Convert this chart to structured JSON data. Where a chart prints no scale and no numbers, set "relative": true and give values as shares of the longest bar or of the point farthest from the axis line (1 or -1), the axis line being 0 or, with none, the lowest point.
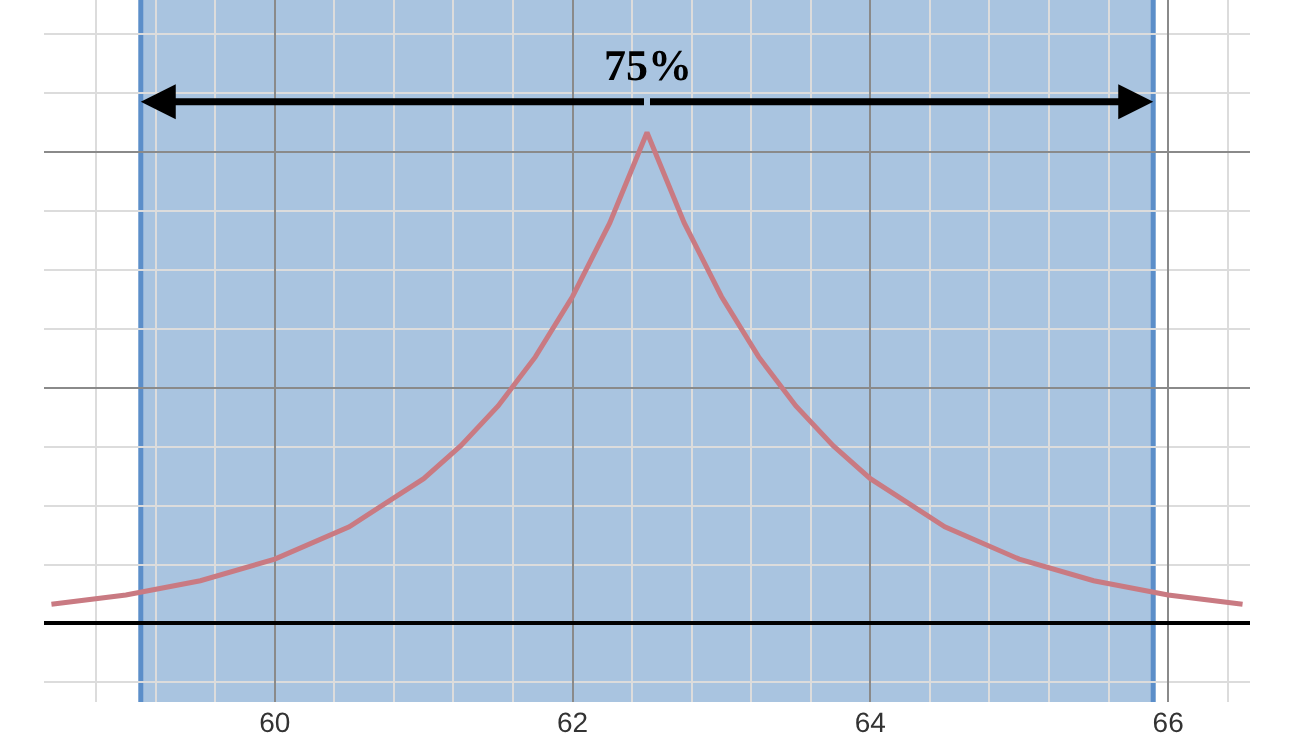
{
  "chart_data": {
    "type": "line",
    "relative": true,
    "x": [
      58.5,
      59,
      59.5,
      60,
      60.5,
      61,
      61.25,
      61.5,
      61.75,
      62,
      62.25,
      62.5,
      62.75,
      63,
      63.25,
      63.5,
      63.75,
      64,
      64.5,
      65,
      65.5,
      66,
      66.5
    ],
    "series": [
      {
        "color": "#c97a82",
        "values": [
          0.039,
          0.058,
          0.087,
          0.131,
          0.197,
          0.295,
          0.362,
          0.443,
          0.543,
          0.666,
          0.816,
          1,
          0.816,
          0.666,
          0.543,
          0.443,
          0.362,
          0.295,
          0.197,
          0.131,
          0.087,
          0.058,
          0.039
        ]
      }
    ],
    "xlim": [
      58.45,
      66.55
    ],
    "xticks": [
      60,
      62,
      64,
      66
    ],
    "bands": [
      {
        "axis": "x",
        "from": 59.1,
        "to": 65.9,
        "label": "75%",
        "color": "#a9c4e0"
      }
    ],
    "ref_lines": [
      {
        "axis": "x",
        "value": 59.1,
        "color": "#5b8ec9"
      },
      {
        "axis": "x",
        "value": 65.9,
        "color": "#5b8ec9"
      }
    ],
    "grid": true,
    "tick_labels": "x"
  }
}
